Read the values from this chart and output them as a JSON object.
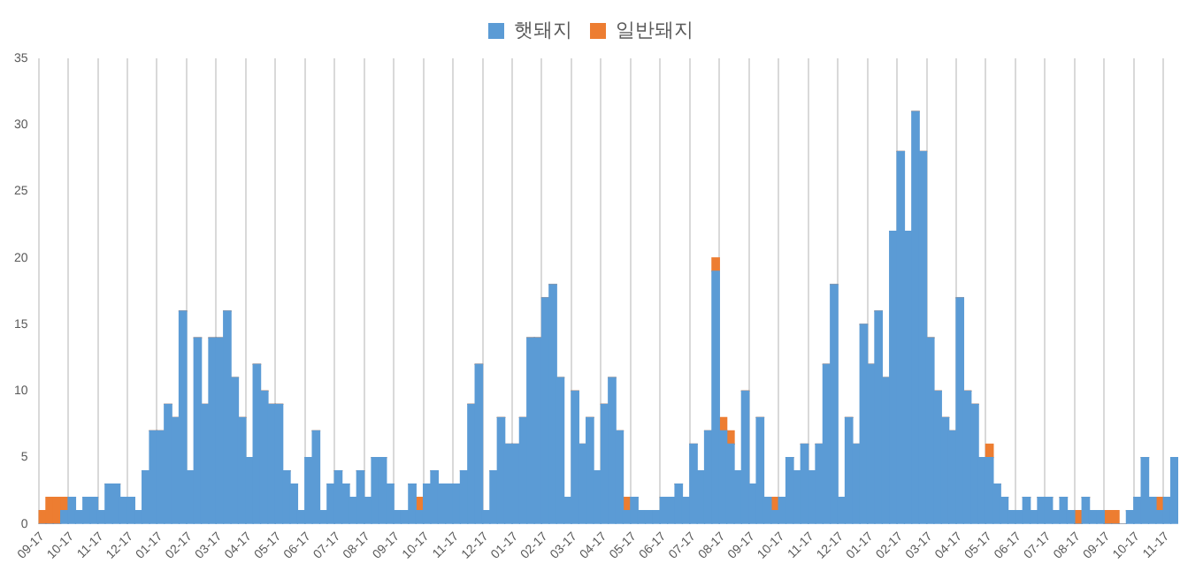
{
  "chart_data": {
    "type": "bar",
    "stacked": true,
    "grid": "x",
    "legend": "top",
    "categories": [
      "09-17",
      null,
      null,
      null,
      "10-17",
      null,
      null,
      null,
      "11-17",
      null,
      null,
      null,
      "12-17",
      null,
      null,
      null,
      "01-17",
      null,
      null,
      null,
      "02-17",
      null,
      null,
      null,
      "03-17",
      null,
      null,
      null,
      "04-17",
      null,
      null,
      null,
      "05-17",
      null,
      null,
      null,
      "06-17",
      null,
      null,
      null,
      "07-17",
      null,
      null,
      null,
      "08-17",
      null,
      null,
      null,
      "09-17",
      null,
      null,
      null,
      "10-17",
      null,
      null,
      null,
      "11-17",
      null,
      null,
      null,
      "12-17",
      null,
      null,
      null,
      "01-17",
      null,
      null,
      null,
      "02-17",
      null,
      null,
      null,
      "03-17",
      null,
      null,
      null,
      "04-17",
      null,
      null,
      null,
      "05-17",
      null,
      null,
      null,
      "06-17",
      null,
      null,
      null,
      "07-17",
      null,
      null,
      null,
      "08-17",
      null,
      null,
      null,
      "09-17",
      null,
      null,
      null,
      "10-17",
      null,
      null,
      null,
      "11-17",
      null,
      null,
      null,
      "12-17",
      null,
      null,
      null,
      "01-17",
      null,
      null,
      null,
      "02-17",
      null,
      null,
      null,
      "03-17",
      null,
      null,
      null,
      "04-17",
      null,
      null,
      null,
      "05-17",
      null,
      null,
      null,
      "06-17",
      null,
      null,
      null,
      "07-17",
      null,
      null,
      null,
      "08-17",
      null,
      null,
      null,
      "09-17",
      null,
      null,
      null,
      "10-17",
      null,
      null,
      null,
      "11-17",
      null
    ],
    "ylim": [
      0,
      35
    ],
    "yticks": [
      0,
      5,
      10,
      15,
      20,
      25,
      30,
      35
    ],
    "series": [
      {
        "name": "햇돼지",
        "color": "#5b9bd5",
        "values": [
          0,
          0,
          0,
          1,
          2,
          1,
          2,
          2,
          1,
          3,
          3,
          2,
          2,
          1,
          4,
          7,
          7,
          9,
          8,
          16,
          4,
          14,
          9,
          14,
          14,
          16,
          11,
          8,
          5,
          12,
          10,
          9,
          9,
          4,
          3,
          1,
          5,
          7,
          1,
          3,
          4,
          3,
          2,
          4,
          2,
          5,
          5,
          3,
          1,
          1,
          3,
          1,
          3,
          4,
          3,
          3,
          3,
          4,
          9,
          12,
          1,
          4,
          8,
          6,
          6,
          8,
          14,
          14,
          17,
          18,
          11,
          2,
          10,
          6,
          8,
          4,
          9,
          11,
          7,
          1,
          2,
          1,
          1,
          1,
          2,
          2,
          3,
          2,
          6,
          4,
          7,
          19,
          7,
          6,
          4,
          10,
          3,
          8,
          2,
          1,
          2,
          5,
          4,
          6,
          4,
          6,
          12,
          18,
          2,
          8,
          6,
          15,
          12,
          16,
          11,
          22,
          28,
          22,
          31,
          28,
          14,
          10,
          8,
          7,
          17,
          10,
          9,
          5,
          5,
          3,
          2,
          1,
          1,
          2,
          1,
          2,
          2,
          1,
          2,
          1,
          0,
          2,
          1,
          1,
          0,
          0,
          0,
          1,
          2,
          5,
          2,
          1,
          2,
          5
        ]
      },
      {
        "name": "일반돼지",
        "color": "#ed7d31",
        "values": [
          1,
          2,
          2,
          1,
          0,
          0,
          0,
          0,
          0,
          0,
          0,
          0,
          0,
          0,
          0,
          0,
          0,
          0,
          0,
          0,
          0,
          0,
          0,
          0,
          0,
          0,
          0,
          0,
          0,
          0,
          0,
          0,
          0,
          0,
          0,
          0,
          0,
          0,
          0,
          0,
          0,
          0,
          0,
          0,
          0,
          0,
          0,
          0,
          0,
          0,
          0,
          1,
          0,
          0,
          0,
          0,
          0,
          0,
          0,
          0,
          0,
          0,
          0,
          0,
          0,
          0,
          0,
          0,
          0,
          0,
          0,
          0,
          0,
          0,
          0,
          0,
          0,
          0,
          0,
          1,
          0,
          0,
          0,
          0,
          0,
          0,
          0,
          0,
          0,
          0,
          0,
          1,
          1,
          1,
          0,
          0,
          0,
          0,
          0,
          1,
          0,
          0,
          0,
          0,
          0,
          0,
          0,
          0,
          0,
          0,
          0,
          0,
          0,
          0,
          0,
          0,
          0,
          0,
          0,
          0,
          0,
          0,
          0,
          0,
          0,
          0,
          0,
          0,
          1,
          0,
          0,
          0,
          0,
          0,
          0,
          0,
          0,
          0,
          0,
          0,
          1,
          0,
          0,
          0,
          1,
          1,
          0,
          0,
          0,
          0,
          0,
          1,
          0,
          0
        ]
      }
    ]
  }
}
